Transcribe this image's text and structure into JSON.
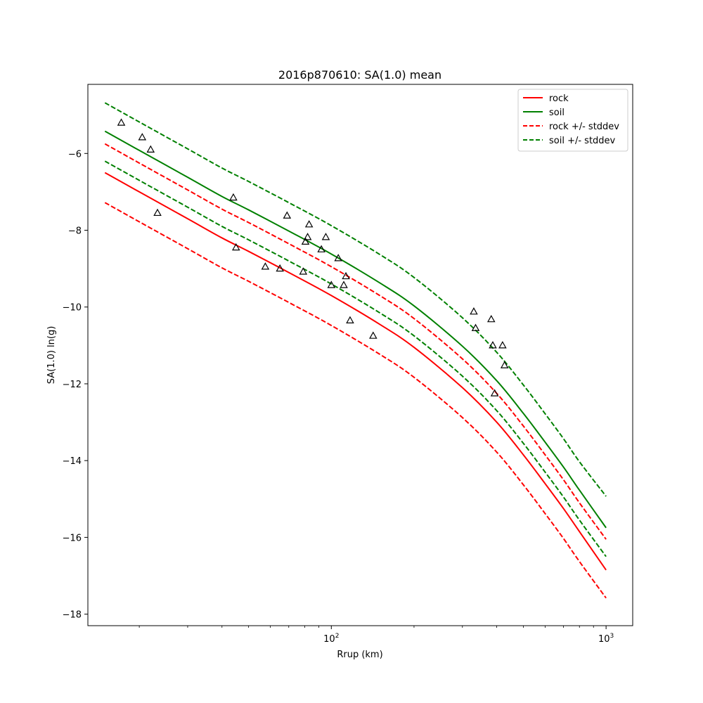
{
  "chart_data": {
    "type": "line",
    "title": "2016p870610: SA(1.0) mean",
    "xlabel": "Rrup (km)",
    "ylabel": "SA(1.0) ln(g)",
    "x_scale": "log",
    "xlim": [
      13.0,
      1250.0
    ],
    "ylim": [
      -18.3,
      -4.2
    ],
    "grid": false,
    "legend_position": "top-right",
    "x_ticks": [
      {
        "value": 100,
        "base": "10",
        "exp": "2"
      },
      {
        "value": 1000,
        "base": "10",
        "exp": "3"
      }
    ],
    "x_minor_ticks": [
      20,
      30,
      40,
      50,
      60,
      70,
      80,
      90,
      200,
      300,
      400,
      500,
      600,
      700,
      800,
      900
    ],
    "y_ticks": [
      {
        "value": -6,
        "label": "−6"
      },
      {
        "value": -8,
        "label": "−8"
      },
      {
        "value": -10,
        "label": "−10"
      },
      {
        "value": -12,
        "label": "−12"
      },
      {
        "value": -14,
        "label": "−14"
      },
      {
        "value": -16,
        "label": "−16"
      },
      {
        "value": -18,
        "label": "−18"
      }
    ],
    "x": [
      15,
      20,
      30,
      40,
      50,
      70,
      100,
      150,
      200,
      300,
      400,
      500,
      600,
      700,
      800,
      1000
    ],
    "series": [
      {
        "name": "rock",
        "color": "#ff0000",
        "dash": "solid",
        "values": [
          -6.5,
          -7.0,
          -7.7,
          -8.2,
          -8.55,
          -9.1,
          -9.7,
          -10.45,
          -11.05,
          -12.1,
          -13.0,
          -13.85,
          -14.6,
          -15.25,
          -15.85,
          -16.85
        ]
      },
      {
        "name": "soil",
        "color": "#008000",
        "dash": "solid",
        "values": [
          -5.42,
          -5.92,
          -6.62,
          -7.12,
          -7.47,
          -8.02,
          -8.62,
          -9.37,
          -9.97,
          -11.02,
          -11.92,
          -12.77,
          -13.52,
          -14.17,
          -14.77,
          -15.75
        ]
      },
      {
        "name": "rock +/- stddev",
        "color": "#ff0000",
        "dash": "dashed",
        "values": [
          -5.75,
          -6.25,
          -6.95,
          -7.45,
          -7.8,
          -8.35,
          -8.95,
          -9.7,
          -10.3,
          -11.35,
          -12.25,
          -13.1,
          -13.85,
          -14.5,
          -15.1,
          -16.05
        ]
      },
      {
        "name": "",
        "color": "#ff0000",
        "dash": "dashed",
        "values": [
          -7.28,
          -7.78,
          -8.48,
          -8.98,
          -9.33,
          -9.88,
          -10.48,
          -11.23,
          -11.83,
          -12.88,
          -13.78,
          -14.63,
          -15.38,
          -16.03,
          -16.63,
          -17.58
        ]
      },
      {
        "name": "soil +/- stddev",
        "color": "#008000",
        "dash": "dashed",
        "values": [
          -4.68,
          -5.18,
          -5.88,
          -6.38,
          -6.73,
          -7.28,
          -7.88,
          -8.63,
          -9.23,
          -10.28,
          -11.18,
          -12.03,
          -12.78,
          -13.43,
          -14.03,
          -14.93
        ]
      },
      {
        "name": "",
        "color": "#008000",
        "dash": "dashed",
        "values": [
          -6.2,
          -6.7,
          -7.4,
          -7.9,
          -8.25,
          -8.8,
          -9.4,
          -10.15,
          -10.75,
          -11.8,
          -12.7,
          -13.55,
          -14.3,
          -14.95,
          -15.55,
          -16.5
        ]
      }
    ],
    "observations": {
      "marker": "triangle",
      "points": [
        {
          "x": 17.2,
          "y": -5.2
        },
        {
          "x": 20.5,
          "y": -5.58
        },
        {
          "x": 22.0,
          "y": -5.9
        },
        {
          "x": 23.3,
          "y": -7.55
        },
        {
          "x": 44.0,
          "y": -7.15
        },
        {
          "x": 45.0,
          "y": -8.45
        },
        {
          "x": 57.5,
          "y": -8.95
        },
        {
          "x": 65.0,
          "y": -9.0
        },
        {
          "x": 69.0,
          "y": -7.62
        },
        {
          "x": 79.0,
          "y": -9.08
        },
        {
          "x": 80.5,
          "y": -8.3
        },
        {
          "x": 82.0,
          "y": -8.18
        },
        {
          "x": 83.0,
          "y": -7.85
        },
        {
          "x": 92.0,
          "y": -8.5
        },
        {
          "x": 95.5,
          "y": -8.18
        },
        {
          "x": 100.0,
          "y": -9.43
        },
        {
          "x": 106.0,
          "y": -8.73
        },
        {
          "x": 111.0,
          "y": -9.43
        },
        {
          "x": 113.0,
          "y": -9.2
        },
        {
          "x": 117.0,
          "y": -10.35
        },
        {
          "x": 142.0,
          "y": -10.75
        },
        {
          "x": 330.0,
          "y": -10.12
        },
        {
          "x": 335.0,
          "y": -10.55
        },
        {
          "x": 382.0,
          "y": -10.32
        },
        {
          "x": 387.0,
          "y": -11.0
        },
        {
          "x": 393.0,
          "y": -12.25
        },
        {
          "x": 420.0,
          "y": -11.0
        },
        {
          "x": 427.0,
          "y": -11.52
        }
      ]
    }
  }
}
